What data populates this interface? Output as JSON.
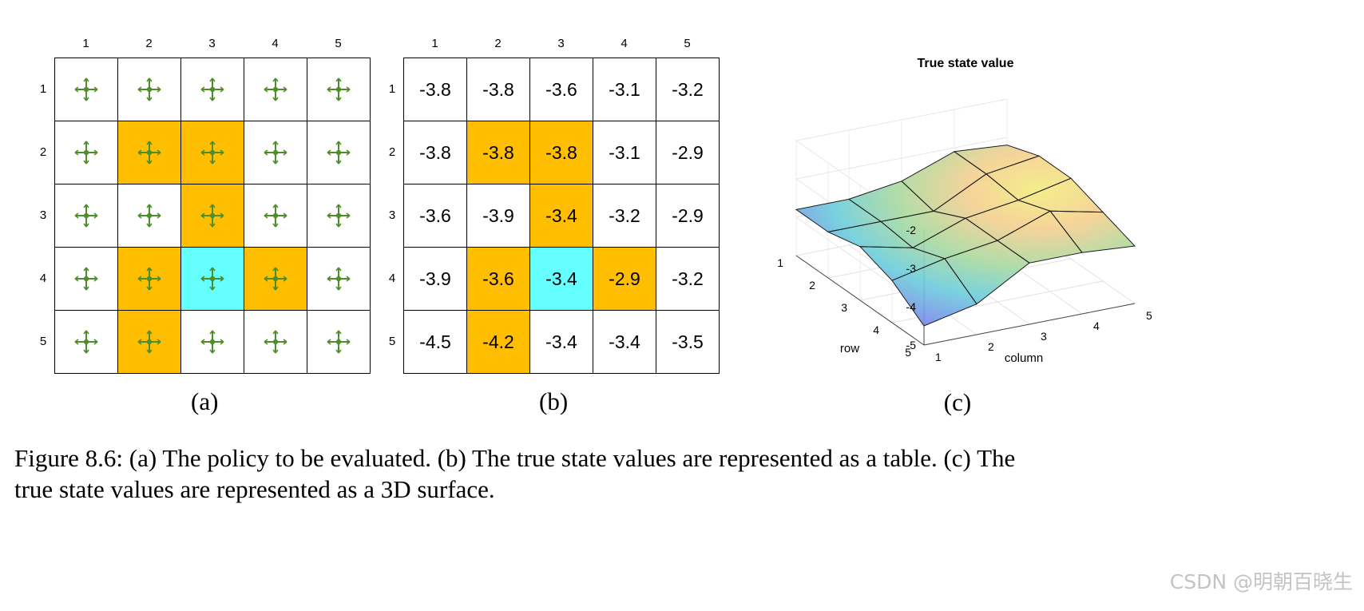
{
  "colors": {
    "highlight": "#FFBE00",
    "target": "#66FFFF",
    "arrow": "#4E8E2A",
    "grid_line": "#000000"
  },
  "panel_a": {
    "col_labels": [
      "1",
      "2",
      "3",
      "4",
      "5"
    ],
    "row_labels": [
      "1",
      "2",
      "3",
      "4",
      "5"
    ],
    "label": "(a)",
    "cell_colors": [
      [
        "white",
        "white",
        "white",
        "white",
        "white"
      ],
      [
        "white",
        "orange",
        "orange",
        "white",
        "white"
      ],
      [
        "white",
        "white",
        "orange",
        "white",
        "white"
      ],
      [
        "white",
        "orange",
        "cyan",
        "orange",
        "white"
      ],
      [
        "white",
        "orange",
        "white",
        "white",
        "white"
      ]
    ],
    "action_icon": "stay-cross-icon"
  },
  "panel_b": {
    "col_labels": [
      "1",
      "2",
      "3",
      "4",
      "5"
    ],
    "row_labels": [
      "1",
      "2",
      "3",
      "4",
      "5"
    ],
    "label": "(b)",
    "values": [
      [
        "-3.8",
        "-3.8",
        "-3.6",
        "-3.1",
        "-3.2"
      ],
      [
        "-3.8",
        "-3.8",
        "-3.8",
        "-3.1",
        "-2.9"
      ],
      [
        "-3.6",
        "-3.9",
        "-3.4",
        "-3.2",
        "-2.9"
      ],
      [
        "-3.9",
        "-3.6",
        "-3.4",
        "-2.9",
        "-3.2"
      ],
      [
        "-4.5",
        "-4.2",
        "-3.4",
        "-3.4",
        "-3.5"
      ]
    ]
  },
  "panel_c": {
    "label": "(c)",
    "title": "True state value",
    "xlabel": "column",
    "ylabel": "row",
    "z_ticks": [
      "-2",
      "-3",
      "-4",
      "-5"
    ],
    "row_ticks": [
      "1",
      "2",
      "3",
      "4",
      "5"
    ],
    "col_ticks": [
      "1",
      "2",
      "3",
      "4",
      "5"
    ]
  },
  "chart_data": {
    "type": "surface",
    "title": "True state value",
    "xlabel": "column",
    "ylabel": "row",
    "zlabel": "",
    "x": [
      1,
      2,
      3,
      4,
      5
    ],
    "y": [
      1,
      2,
      3,
      4,
      5
    ],
    "z": [
      [
        -3.8,
        -3.8,
        -3.6,
        -3.1,
        -3.2
      ],
      [
        -3.8,
        -3.8,
        -3.8,
        -3.1,
        -2.9
      ],
      [
        -3.6,
        -3.9,
        -3.4,
        -3.2,
        -2.9
      ],
      [
        -3.9,
        -3.6,
        -3.4,
        -2.9,
        -3.2
      ],
      [
        -4.5,
        -4.2,
        -3.4,
        -3.4,
        -3.5
      ]
    ],
    "zlim": [
      -5,
      -2
    ]
  },
  "caption": {
    "line1": "Figure 8.6: (a) The policy to be evaluated. (b) The true state values are represented as a table. (c) The",
    "line2": "true state values are represented as a 3D surface."
  },
  "watermark": "CSDN @明朝百晓生"
}
